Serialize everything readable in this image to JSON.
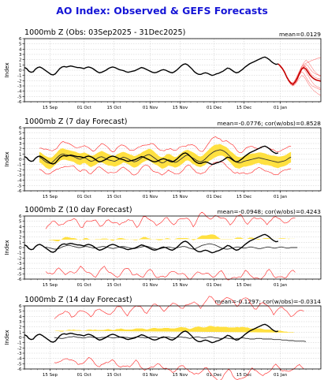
{
  "title": "AO Index: Observed & GEFS Forecasts",
  "chart_data": [
    {
      "type": "line",
      "title": "1000mb Z (Obs: 03Sep2025 - 31Dec2025)",
      "stat": "mean=0.0129",
      "ylabel": "Index",
      "ylim": [
        -6,
        6
      ],
      "yticks": [
        -6,
        -5,
        -4,
        -3,
        -2,
        -1,
        0,
        1,
        2,
        3,
        4,
        5,
        6
      ],
      "xticks": [
        "15 Sep",
        "01 Oct",
        "15 Oct",
        "01 Nov",
        "15 Nov",
        "01 Dec",
        "15 Dec",
        "01 Jan"
      ],
      "x_start": "03Sep2025",
      "x_end": "20Jan2026",
      "observed": [
        0.5,
        0.3,
        -0.2,
        -0.4,
        -0.3,
        0.2,
        0.5,
        0.6,
        0.4,
        0.1,
        -0.2,
        -0.5,
        -0.8,
        -0.9,
        -0.7,
        -0.2,
        0.3,
        0.6,
        0.7,
        0.6,
        0.7,
        0.8,
        0.7,
        0.6,
        0.5,
        0.5,
        0.4,
        0.3,
        0.5,
        0.6,
        0.5,
        0.3,
        0.0,
        -0.3,
        -0.5,
        -0.4,
        -0.2,
        0.0,
        0.3,
        0.5,
        0.6,
        0.5,
        0.3,
        0.1,
        0.0,
        -0.1,
        -0.3,
        -0.4,
        -0.3,
        -0.2,
        -0.1,
        0.1,
        0.3,
        0.5,
        0.4,
        0.2,
        0.0,
        -0.2,
        -0.4,
        -0.5,
        -0.4,
        -0.2,
        0.0,
        0.1,
        0.0,
        -0.2,
        -0.4,
        -0.5,
        -0.3,
        0.0,
        0.4,
        0.8,
        1.1,
        1.2,
        1.0,
        0.6,
        0.2,
        -0.3,
        -0.6,
        -0.8,
        -0.8,
        -0.6,
        -0.5,
        -0.6,
        -0.8,
        -1.0,
        -0.9,
        -0.7,
        -0.6,
        -0.4,
        -0.2,
        0.1,
        0.4,
        0.3,
        0.0,
        -0.3,
        -0.5,
        -0.4,
        -0.1,
        0.2,
        0.6,
        0.9,
        1.2,
        1.4,
        1.6,
        1.8,
        2.0,
        2.2,
        2.4,
        2.5,
        2.3,
        2.0,
        1.6,
        1.3,
        1.1,
        1.2
      ],
      "ensemble": {
        "start": "31Dec2025",
        "end": "20Jan2026",
        "mean": [
          1.2,
          0.8,
          0.3,
          -0.4,
          -1.3,
          -2.0,
          -2.5,
          -2.7,
          -2.2,
          -1.5,
          -0.6,
          0.2,
          0.5,
          0.2,
          -0.4,
          -1.0,
          -1.4,
          -1.7,
          -1.9,
          -2.0,
          -2.1
        ],
        "members": [
          [
            1.2,
            0.7,
            0.2,
            -0.6,
            -1.4,
            -2.2,
            -2.8,
            -3.0,
            -2.6,
            -1.9,
            -0.8,
            0.4,
            0.9,
            0.6,
            -0.1,
            -0.8,
            -1.3,
            -1.6,
            -1.8,
            -1.9,
            -2.0
          ],
          [
            1.2,
            0.9,
            0.4,
            -0.2,
            -1.1,
            -1.8,
            -2.3,
            -2.4,
            -1.8,
            -1.0,
            -0.1,
            0.7,
            1.1,
            1.3,
            1.5,
            1.7,
            1.9,
            2.0,
            2.2,
            2.3,
            2.4
          ],
          [
            1.2,
            0.8,
            0.3,
            -0.5,
            -1.5,
            -2.1,
            -2.6,
            -2.9,
            -2.6,
            -2.1,
            -1.5,
            -1.0,
            -1.2,
            -1.8,
            -2.5,
            -3.1,
            -3.6,
            -4.0,
            -4.3,
            -4.6,
            -4.8
          ],
          [
            1.2,
            0.6,
            0.1,
            -0.5,
            -1.2,
            -1.9,
            -2.4,
            -2.5,
            -2.0,
            -1.2,
            -0.3,
            0.3,
            0.3,
            -0.3,
            -1.0,
            -1.7,
            -2.3,
            -2.8,
            -3.1,
            -3.3,
            -3.5
          ],
          [
            1.2,
            0.8,
            0.4,
            -0.3,
            -1.2,
            -2.0,
            -2.6,
            -2.8,
            -2.3,
            -1.6,
            -0.8,
            0.0,
            0.6,
            1.1,
            0.8,
            0.2,
            -0.3,
            -0.6,
            -0.8,
            -0.9,
            -1.0
          ],
          [
            1.2,
            0.7,
            0.2,
            -0.4,
            -1.3,
            -2.1,
            -2.5,
            -2.6,
            -2.1,
            -1.3,
            -0.4,
            0.6,
            1.4,
            1.9,
            1.6,
            1.0,
            0.4,
            -0.2,
            -0.6,
            -1.0,
            -1.2
          ],
          [
            1.2,
            0.9,
            0.3,
            -0.4,
            -1.4,
            -2.0,
            -2.4,
            -2.7,
            -2.4,
            -1.7,
            -0.9,
            -0.3,
            -0.6,
            -1.3,
            -2.0,
            -2.6,
            -3.0,
            -3.2,
            -3.4,
            -3.6,
            -3.7
          ],
          [
            1.2,
            0.8,
            0.3,
            -0.3,
            -1.2,
            -1.9,
            -2.5,
            -2.8,
            -2.2,
            -1.4,
            -0.5,
            0.3,
            0.8,
            0.6,
            0.1,
            -0.5,
            -1.0,
            -1.3,
            -1.5,
            -1.6,
            -1.7
          ]
        ]
      }
    },
    {
      "type": "line",
      "title": "1000mb Z (7 day Forecast)",
      "stat": "mean=-0.0776; cor(w/obs)=0.8528",
      "ylabel": "Index",
      "ylim": [
        -6,
        6
      ],
      "yticks": [
        -6,
        -5,
        -4,
        -3,
        -2,
        -1,
        0,
        1,
        2,
        3,
        4,
        5,
        6
      ],
      "xticks": [
        "15 Sep",
        "01 Oct",
        "15 Oct",
        "01 Nov",
        "15 Nov",
        "01 Dec",
        "15 Dec",
        "01 Jan"
      ],
      "x_start": "03Sep2025",
      "x_end": "20Jan2026",
      "forecast_start": "10Sep2025",
      "forecast_end": "06Jan2026",
      "mean": [
        0.4,
        0.2,
        -0.2,
        -0.5,
        -0.7,
        -0.8,
        -0.6,
        -0.2,
        0.2,
        0.6,
        0.9,
        1.0,
        0.9,
        0.8,
        0.7,
        0.6,
        0.5,
        0.3,
        0.1,
        0.0,
        0.2,
        0.3,
        0.1,
        -0.2,
        -0.4,
        -0.3,
        -0.1,
        0.2,
        0.4,
        0.5,
        0.3,
        0.1,
        -0.1,
        -0.2,
        -0.3,
        -0.4,
        -0.2,
        0.0,
        0.2,
        0.4,
        0.3,
        0.1,
        -0.1,
        -0.3,
        -0.5,
        -0.4,
        -0.2,
        0.1,
        0.4,
        0.6,
        0.8,
        0.9,
        0.7,
        0.4,
        0.1,
        -0.2,
        -0.5,
        -0.7,
        -0.6,
        -0.3,
        -0.1,
        -0.2,
        -0.4,
        -0.6,
        -0.5,
        -0.2,
        0.1,
        0.4,
        0.7,
        0.8,
        0.6,
        0.3,
        0.1,
        -0.2,
        -0.4,
        -0.5,
        -0.3,
        0.0,
        0.4,
        0.8,
        1.1,
        1.4,
        1.6,
        1.7,
        1.8,
        1.7,
        1.5,
        1.2,
        0.8,
        0.4,
        0.0,
        -0.4,
        -0.6,
        -0.7,
        -0.6,
        -0.4,
        -0.3,
        -0.2,
        -0.1,
        0.0,
        0.1,
        0.2,
        0.3,
        0.2,
        0.1,
        0.0,
        -0.1,
        -0.2,
        -0.3,
        -0.4,
        -0.5,
        -0.6,
        -0.5,
        -0.4,
        -0.3,
        -0.1,
        0.2,
        0.4
      ],
      "spread": [
        1.0,
        1.0,
        1.0,
        1.1,
        1.1,
        1.1,
        1.0,
        1.0,
        1.0,
        1.1,
        1.1,
        1.1,
        1.0,
        1.0,
        1.0,
        1.0,
        1.0,
        1.1,
        1.1,
        1.1,
        1.0,
        1.0,
        1.0,
        1.1,
        1.1,
        1.0,
        1.0,
        1.0,
        1.0,
        1.1,
        1.1,
        1.1,
        1.1,
        1.0,
        1.0,
        1.0,
        1.1,
        1.1,
        1.1,
        1.0,
        1.0,
        1.0,
        1.0,
        1.1,
        1.1,
        1.1,
        1.1,
        1.0,
        1.0,
        1.0,
        1.0,
        1.1,
        1.2,
        1.2,
        1.1,
        1.0,
        1.0,
        1.1,
        1.1,
        1.2,
        1.1,
        1.1,
        1.0,
        1.0,
        1.0,
        1.1,
        1.1,
        1.1,
        1.0,
        1.0,
        1.0,
        1.1,
        1.1,
        1.1,
        1.0,
        1.0,
        1.0,
        1.1,
        1.1,
        1.1,
        1.2,
        1.2,
        1.2,
        1.1,
        1.1,
        1.0,
        1.0,
        1.1,
        1.1,
        1.1,
        1.2,
        1.2,
        1.1,
        1.1,
        1.0,
        1.0,
        1.1,
        1.1,
        1.1,
        1.1,
        1.0,
        1.0,
        1.0,
        1.1,
        1.1,
        1.1,
        1.0,
        1.0,
        1.0,
        1.1,
        1.1,
        1.1,
        1.0,
        1.0,
        1.0,
        1.0,
        1.0,
        1.0
      ],
      "extreme_spread": 2.0
    },
    {
      "type": "line",
      "title": "1000mb Z (10 day Forecast)",
      "stat": "mean=-0.0948; cor(w/obs)=0.4243",
      "ylabel": "Index",
      "ylim": [
        -6,
        6
      ],
      "yticks": [
        -6,
        -5,
        -4,
        -3,
        -2,
        -1,
        0,
        1,
        2,
        3,
        4,
        5,
        6
      ],
      "xticks": [
        "15 Sep",
        "01 Oct",
        "15 Oct",
        "01 Nov",
        "15 Nov",
        "01 Dec",
        "15 Dec",
        "01 Jan"
      ],
      "x_start": "03Sep2025",
      "x_end": "20Jan2026",
      "forecast_start": "13Sep2025",
      "forecast_end": "09Jan2026",
      "mean": [
        0.1,
        0.0,
        -0.1,
        -0.2,
        -0.3,
        -0.3,
        -0.2,
        0.0,
        0.2,
        0.3,
        0.4,
        0.4,
        0.3,
        0.2,
        0.1,
        0.0,
        0.0,
        0.1,
        0.2,
        0.2,
        0.1,
        0.0,
        -0.1,
        -0.1,
        0.0,
        0.1,
        0.2,
        0.2,
        0.1,
        0.0,
        -0.1,
        -0.2,
        -0.1,
        0.0,
        0.1,
        0.2,
        0.2,
        0.1,
        0.0,
        -0.1,
        -0.2,
        -0.2,
        -0.1,
        0.0,
        0.1,
        0.2,
        0.3,
        0.2,
        0.1,
        -0.1,
        -0.2,
        -0.3,
        -0.3,
        -0.2,
        -0.1,
        0.0,
        0.1,
        0.1,
        0.0,
        -0.1,
        -0.1,
        0.0,
        0.1,
        0.2,
        0.2,
        0.1,
        -0.1,
        -0.2,
        -0.3,
        -0.2,
        0.0,
        0.2,
        0.4,
        0.5,
        0.6,
        0.7,
        0.7,
        0.6,
        0.5,
        0.3,
        0.1,
        -0.1,
        -0.2,
        -0.3,
        -0.3,
        -0.2,
        -0.1,
        0.0,
        0.1,
        0.1,
        0.0,
        -0.1,
        -0.1,
        0.0,
        0.1,
        0.1,
        0.0,
        -0.1,
        -0.2,
        -0.2,
        -0.1,
        0.0,
        0.1,
        0.1,
        0.0,
        -0.1,
        -0.1,
        0.0,
        0.1,
        0.1,
        0.0,
        -0.1,
        -0.1,
        0.0,
        0.0,
        0.0,
        0.0
      ],
      "spread": [
        1.4,
        1.5,
        1.5,
        1.6,
        1.6,
        1.5,
        1.4,
        1.5,
        1.6,
        1.7,
        1.6,
        1.5,
        1.5,
        1.6,
        1.6,
        1.5,
        1.4,
        1.5,
        1.6,
        1.6,
        1.5,
        1.5,
        1.6,
        1.7,
        1.6,
        1.5,
        1.5,
        1.5,
        1.6,
        1.6,
        1.5,
        1.5,
        1.6,
        1.7,
        1.7,
        1.6,
        1.5,
        1.5,
        1.6,
        1.6,
        1.7,
        1.6,
        1.5,
        1.6,
        1.7,
        1.8,
        1.7,
        1.6,
        1.6,
        1.7,
        1.8,
        1.8,
        1.7,
        1.6,
        1.6,
        1.7,
        1.7,
        1.6,
        1.6,
        1.7,
        1.8,
        1.8,
        1.7,
        1.6,
        1.6,
        1.7,
        1.8,
        1.8,
        1.7,
        1.7,
        1.8,
        1.9,
        1.9,
        1.8,
        1.7,
        1.7,
        1.8,
        1.9,
        1.9,
        1.8,
        1.7,
        1.7,
        1.8,
        1.9,
        1.9,
        1.8,
        1.7,
        1.7,
        1.8,
        1.8,
        1.9,
        1.8,
        1.7,
        1.7,
        1.8,
        1.8,
        1.8,
        1.7,
        1.7,
        1.8,
        1.8,
        1.8,
        1.7,
        1.7,
        1.7,
        1.8,
        1.8,
        1.7,
        1.7,
        1.7,
        1.8,
        1.8,
        1.7,
        1.7,
        1.7,
        1.7
      ],
      "extreme_spread": 2.9
    },
    {
      "type": "line",
      "title": "1000mb Z (14 day Forecast)",
      "stat": "mean=-0.1297; cor(w/obs)=-0.0314",
      "ylabel": "Index",
      "ylim": [
        -6,
        6
      ],
      "yticks": [
        -6,
        -5,
        -4,
        -3,
        -2,
        -1,
        0,
        1,
        2,
        3,
        4,
        5,
        6
      ],
      "xticks": [
        "15 Sep",
        "01 Oct",
        "15 Oct",
        "01 Nov",
        "15 Nov",
        "01 Dec",
        "15 Dec",
        "01 Jan"
      ],
      "x_start": "03Sep2025",
      "x_end": "20Jan2026",
      "forecast_start": "17Sep2025",
      "forecast_end": "13Jan2026",
      "mean": [
        0.0,
        -0.1,
        -0.1,
        -0.2,
        -0.2,
        -0.1,
        0.0,
        0.1,
        0.1,
        0.2,
        0.1,
        0.0,
        0.0,
        -0.1,
        -0.1,
        0.0,
        0.1,
        0.1,
        0.0,
        0.0,
        -0.1,
        -0.1,
        0.0,
        0.0,
        0.1,
        0.1,
        0.0,
        -0.1,
        -0.1,
        0.0,
        0.0,
        0.1,
        0.1,
        0.0,
        0.0,
        -0.1,
        -0.1,
        0.0,
        0.1,
        0.1,
        0.0,
        0.0,
        -0.1,
        -0.1,
        0.0,
        0.1,
        0.1,
        0.1,
        0.0,
        -0.1,
        -0.1,
        0.0,
        0.1,
        0.1,
        0.0,
        -0.1,
        -0.1,
        0.0,
        0.1,
        0.1,
        0.0,
        0.0,
        -0.1,
        -0.2,
        -0.1,
        0.0,
        0.1,
        0.1,
        0.0,
        -0.1,
        -0.1,
        0.0,
        0.1,
        0.1,
        0.0,
        -0.1,
        -0.1,
        -0.2,
        -0.2,
        -0.1,
        -0.1,
        -0.2,
        -0.2,
        -0.3,
        -0.3,
        -0.2,
        -0.2,
        -0.1,
        -0.1,
        -0.2,
        -0.2,
        -0.3,
        -0.3,
        -0.3,
        -0.2,
        -0.2,
        -0.2,
        -0.3,
        -0.3,
        -0.3,
        -0.3,
        -0.3,
        -0.4,
        -0.4,
        -0.4,
        -0.4,
        -0.5,
        -0.5,
        -0.5,
        -0.6,
        -0.6,
        -0.6,
        -0.7,
        -0.7,
        -0.7,
        -0.7,
        -0.7,
        -0.8
      ],
      "spread": [
        1.3,
        1.3,
        1.3,
        1.3,
        1.3,
        1.4,
        1.4,
        1.4,
        1.3,
        1.3,
        1.3,
        1.4,
        1.4,
        1.4,
        1.4,
        1.4,
        1.4,
        1.4,
        1.4,
        1.5,
        1.5,
        1.5,
        1.4,
        1.4,
        1.4,
        1.5,
        1.5,
        1.5,
        1.5,
        1.6,
        1.6,
        1.6,
        1.5,
        1.5,
        1.5,
        1.6,
        1.6,
        1.6,
        1.6,
        1.6,
        1.7,
        1.7,
        1.7,
        1.6,
        1.6,
        1.6,
        1.7,
        1.7,
        1.7,
        1.8,
        1.8,
        1.8,
        1.7,
        1.7,
        1.7,
        1.8,
        1.8,
        1.8,
        1.8,
        1.9,
        1.9,
        1.9,
        1.8,
        1.8,
        1.8,
        1.9,
        1.9,
        2.0,
        2.0,
        2.0,
        2.0,
        2.0,
        2.1,
        2.1,
        2.1,
        2.1,
        2.2,
        2.2,
        2.2,
        2.1,
        2.1,
        2.1,
        2.1,
        2.2,
        2.2,
        2.2,
        2.1,
        2.1,
        2.1,
        2.1,
        2.1,
        2.0,
        2.0,
        2.0,
        1.9,
        1.9,
        1.9,
        1.9,
        1.8,
        1.8,
        1.8,
        1.8,
        1.7,
        1.7,
        1.7,
        1.7,
        1.7,
        1.6,
        1.6,
        1.6,
        1.6,
        1.6,
        1.6,
        1.6,
        1.6,
        1.6,
        1.6
      ],
      "extreme_spread": 3.2
    }
  ],
  "colors": {
    "title": "#1515d6",
    "observed": "#000000",
    "ensemble_member": "#ff2020",
    "ensemble_mean": "#c00000",
    "band": "#ffe040",
    "forecast_mean": "#303030",
    "grid": "#bbbbbb"
  }
}
